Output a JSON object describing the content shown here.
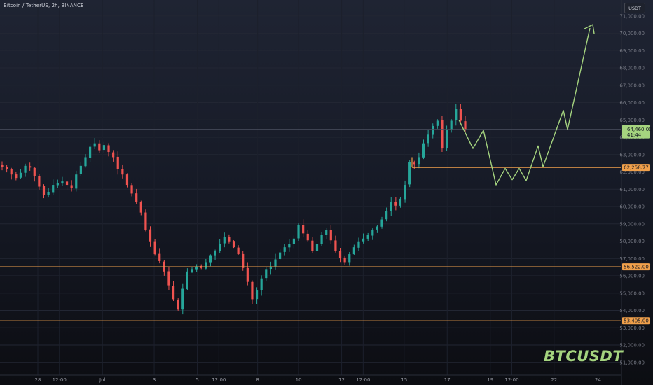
{
  "header": {
    "symbol_title": "Bitcoin / TetherUS, 2h, BINANCE",
    "currency": "USDT",
    "watermark": "BTCUSDT"
  },
  "colors": {
    "up": "#26a69a",
    "down": "#ef5350",
    "level_line": "#f0a04b",
    "projection": "#a5d47f",
    "last_price_bg": "#a5d47f"
  },
  "chart_data": {
    "type": "candlestick",
    "symbol": "BTCUSDT",
    "interval": "2h",
    "exchange": "BINANCE",
    "ylim": [
      50500,
      71000
    ],
    "y_ticks": [
      "51,000.00",
      "52,000.00",
      "53,000.00",
      "54,000.00",
      "55,000.00",
      "56,000.00",
      "57,000.00",
      "58,000.00",
      "59,000.00",
      "60,000.00",
      "61,000.00",
      "62,000.00",
      "63,000.00",
      "64,000.00",
      "65,000.00",
      "66,000.00",
      "67,000.00",
      "68,000.00",
      "69,000.00",
      "70,000.00",
      "71,000.00"
    ],
    "x_ticks": [
      "28",
      "12:00",
      "Jul",
      "3",
      "5",
      "12:00",
      "8",
      "10",
      "12",
      "12:00",
      "15",
      "17",
      "19",
      "12:00",
      "22",
      "24"
    ],
    "price_close_path": [
      62300,
      62150,
      61850,
      61650,
      61950,
      62350,
      62250,
      61750,
      61150,
      60650,
      60850,
      61250,
      61350,
      61450,
      61250,
      61050,
      61850,
      62350,
      62850,
      63450,
      63650,
      63250,
      63550,
      63150,
      62850,
      62150,
      61850,
      61250,
      60750,
      60250,
      59650,
      58650,
      57950,
      57250,
      56850,
      56250,
      55450,
      54650,
      54050,
      55250,
      56250,
      56350,
      56550,
      56450,
      56750,
      57150,
      57450,
      57850,
      58250,
      57950,
      57650,
      57250,
      56450,
      55650,
      54650,
      55150,
      55850,
      56350,
      56550,
      56950,
      57350,
      57650,
      57850,
      58150,
      58950,
      58450,
      58050,
      57450,
      57850,
      58350,
      58650,
      58050,
      57450,
      57050,
      56750,
      57250,
      57650,
      57950,
      58150,
      58350,
      58650,
      58850,
      59250,
      59750,
      60250,
      60050,
      60450,
      61250,
      62550,
      62450,
      62850,
      63650,
      64150,
      64650,
      64950,
      63350,
      64450,
      64950,
      65650,
      64950,
      64450
    ],
    "candle_count": 101,
    "levels": [
      {
        "label": "62,258.77",
        "price": 62258.77
      },
      {
        "label": "56,522.00",
        "price": 56522.0
      },
      {
        "label": "53,405.00",
        "price": 53405.0
      }
    ],
    "last_price": {
      "price_label": "64,460.00",
      "countdown": "41:44",
      "price": 64460.0
    },
    "projection_path": [
      {
        "date": "Jul 17 10:00",
        "price": 65000
      },
      {
        "date": "Jul 18 12:00",
        "price": 63350
      },
      {
        "date": "Jul 18 18:00",
        "price": 64400
      },
      {
        "date": "Jul 19 08:00",
        "price": 61250
      },
      {
        "date": "Jul 19 14:00",
        "price": 62200
      },
      {
        "date": "Jul 19 18:00",
        "price": 61550
      },
      {
        "date": "Jul 20 02:00",
        "price": 62200
      },
      {
        "date": "Jul 20 08:00",
        "price": 61500
      },
      {
        "date": "Jul 20 22:00",
        "price": 63500
      },
      {
        "date": "Jul 21 04:00",
        "price": 62300
      },
      {
        "date": "Jul 22 10:00",
        "price": 65550
      },
      {
        "date": "Jul 22 14:00",
        "price": 64450
      },
      {
        "date": "Jul 23 20:00",
        "price": 70300
      }
    ]
  }
}
